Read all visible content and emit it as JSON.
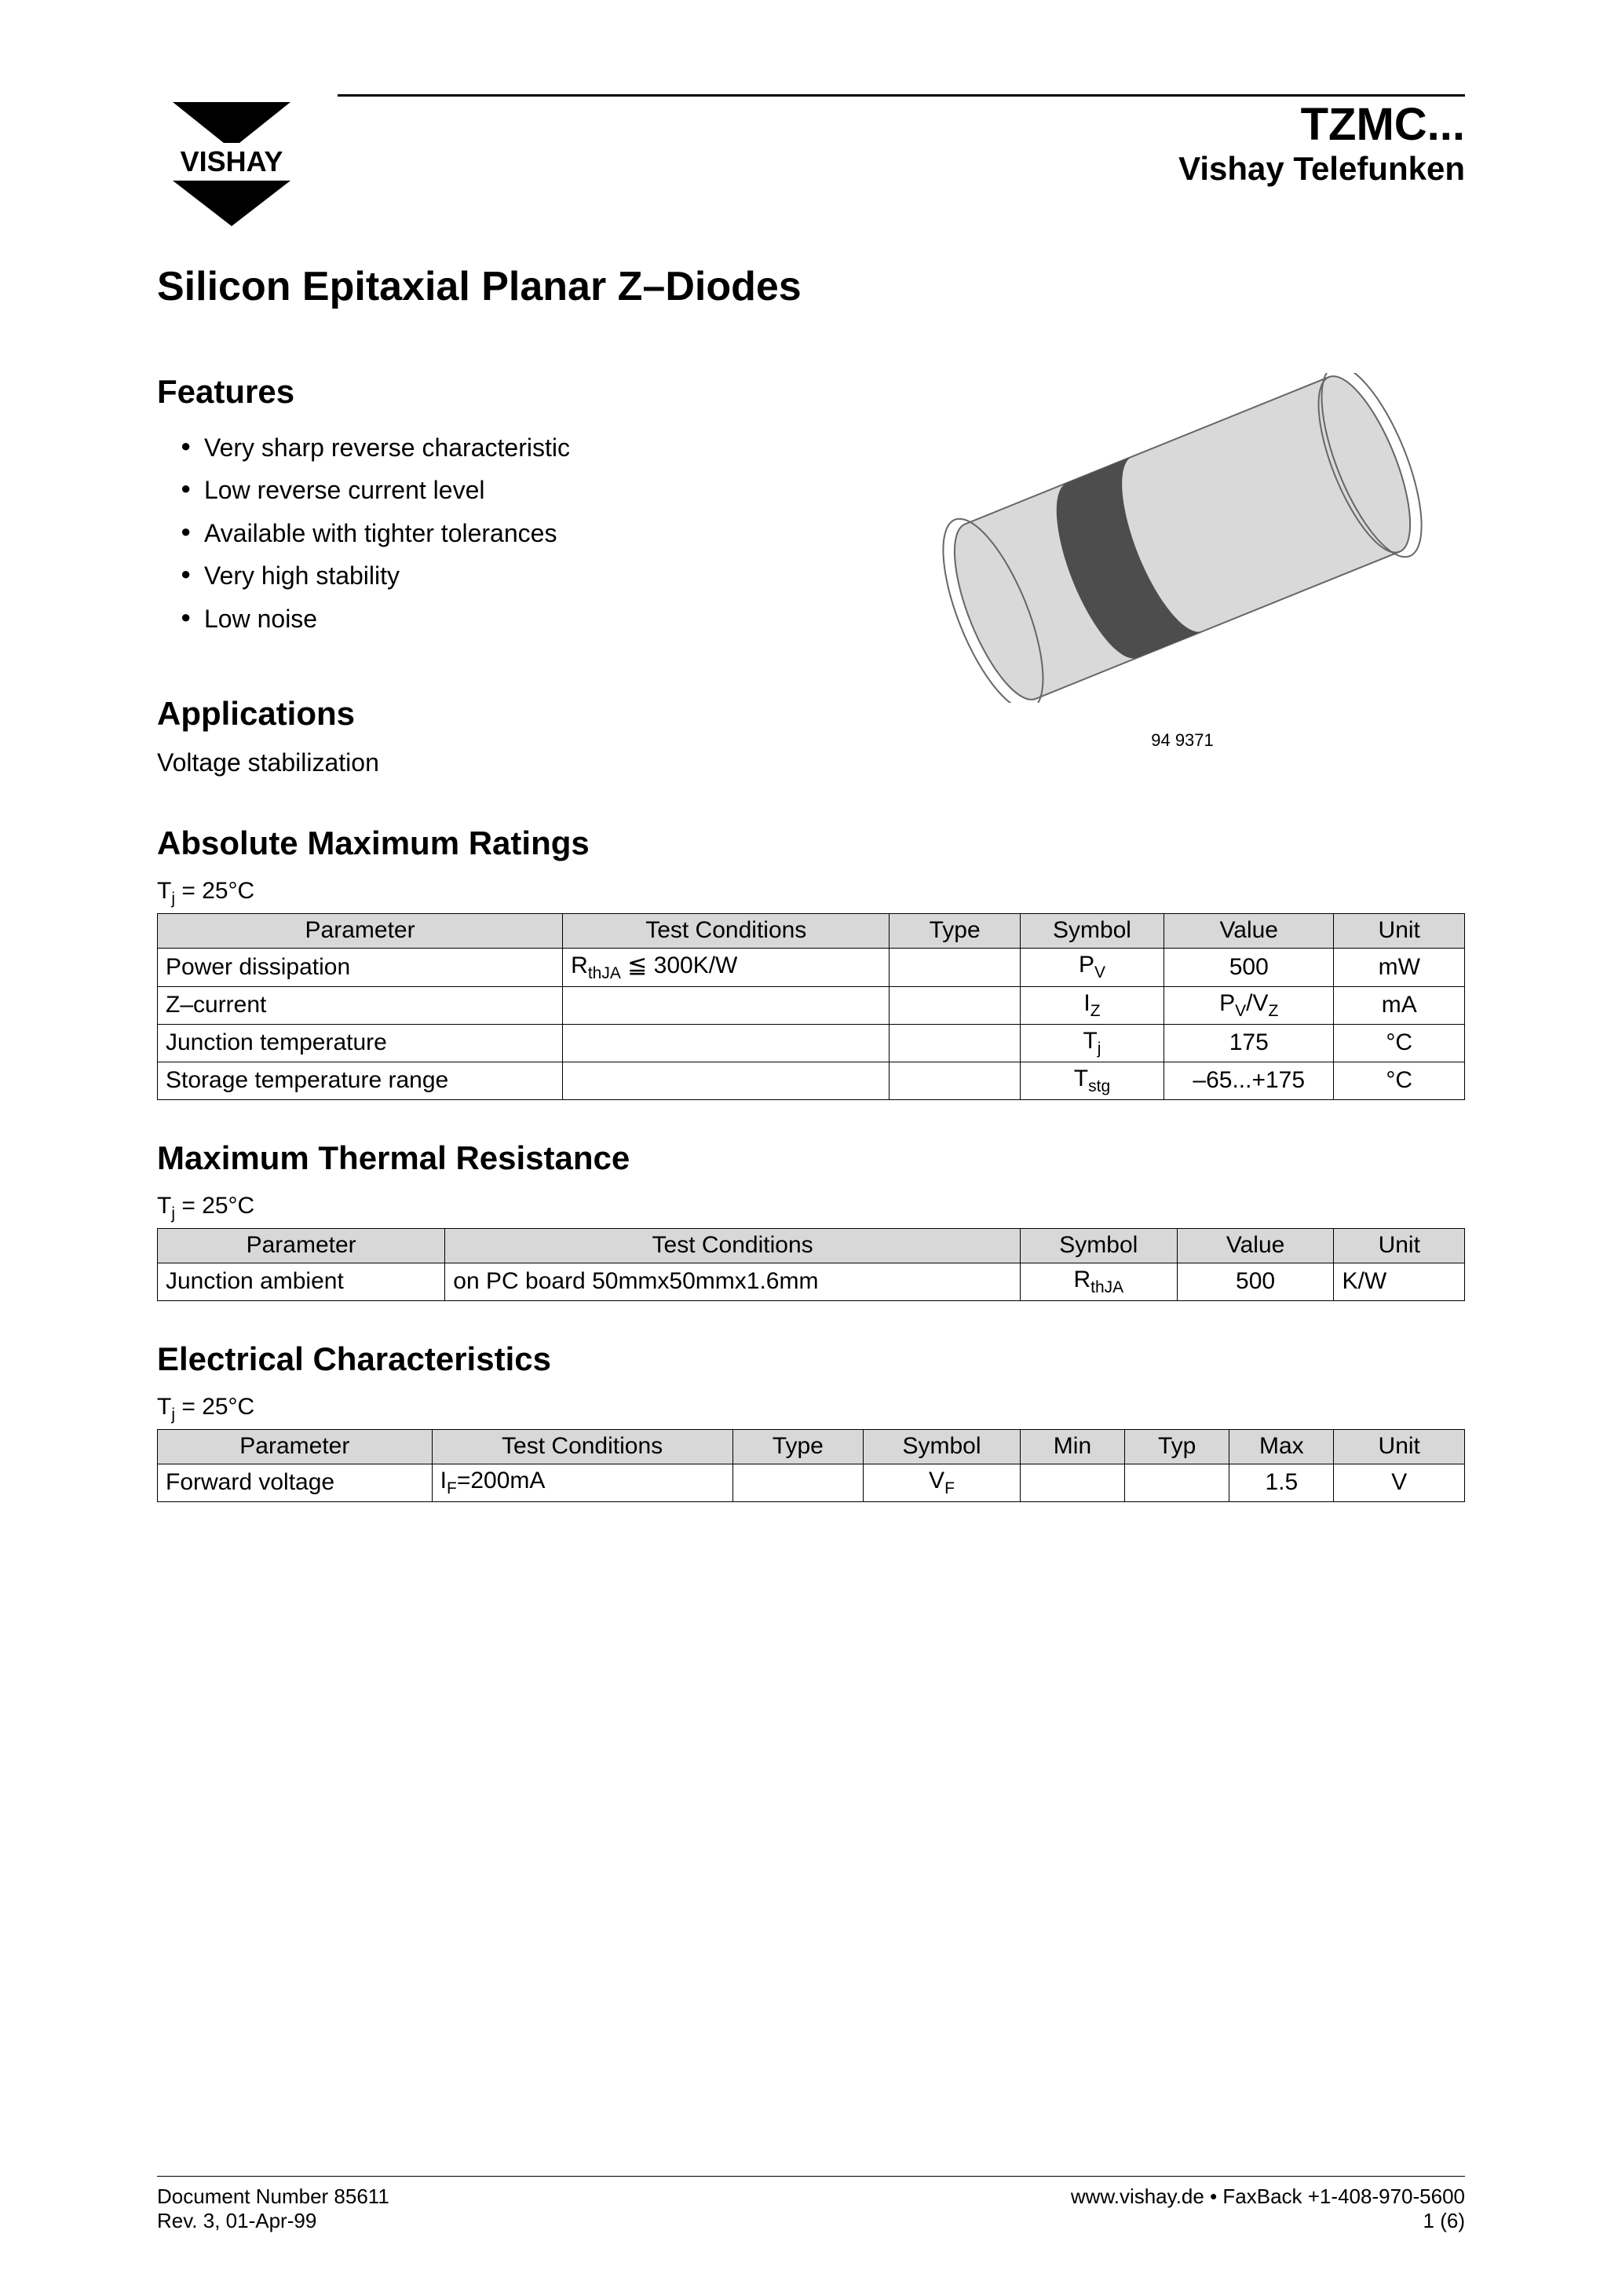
{
  "header": {
    "logo_text": "VISHAY",
    "product_code": "TZMC...",
    "brand_sub": "Vishay Telefunken"
  },
  "title": "Silicon Epitaxial Planar Z–Diodes",
  "features": {
    "heading": "Features",
    "items": [
      "Very sharp reverse characteristic",
      "Low reverse current level",
      "Available with tighter tolerances",
      "Very high stability",
      "Low noise"
    ]
  },
  "applications": {
    "heading": "Applications",
    "text": "Voltage stabilization"
  },
  "component_diagram": {
    "caption": "94 9371",
    "body_fill": "#d9d9d9",
    "band_fill": "#4d4d4d",
    "stroke": "#666666"
  },
  "abs_max": {
    "heading": "Absolute Maximum Ratings",
    "condition_html": "T<span class=\"sub\">j</span> = 25°C",
    "columns": [
      "Parameter",
      "Test Conditions",
      "Type",
      "Symbol",
      "Value",
      "Unit"
    ],
    "col_widths": [
      "31%",
      "25%",
      "10%",
      "11%",
      "13%",
      "10%"
    ],
    "rows": [
      {
        "parameter": "Power dissipation",
        "test": "R<span class=\"sub\">thJA</span> ≦ 300K/W",
        "type": "",
        "symbol": "P<span class=\"sub\">V</span>",
        "value": "500",
        "unit": "mW"
      },
      {
        "parameter": "Z–current",
        "test": "",
        "type": "",
        "symbol": "I<span class=\"sub\">Z</span>",
        "value": "P<span class=\"sub\">V</span>/V<span class=\"sub\">Z</span>",
        "unit": "mA"
      },
      {
        "parameter": "Junction temperature",
        "test": "",
        "type": "",
        "symbol": "T<span class=\"sub\">j</span>",
        "value": "175",
        "unit": "°C"
      },
      {
        "parameter": "Storage temperature range",
        "test": "",
        "type": "",
        "symbol": "T<span class=\"sub\">stg</span>",
        "value": "–65...+175",
        "unit": "°C"
      }
    ]
  },
  "thermal": {
    "heading": "Maximum Thermal Resistance",
    "condition_html": "T<span class=\"sub\">j</span> = 25°C",
    "columns": [
      "Parameter",
      "Test Conditions",
      "Symbol",
      "Value",
      "Unit"
    ],
    "col_widths": [
      "22%",
      "44%",
      "12%",
      "12%",
      "10%"
    ],
    "rows": [
      {
        "parameter": "Junction ambient",
        "test": "on PC board 50mmx50mmx1.6mm",
        "symbol": "R<span class=\"sub\">thJA</span>",
        "value": "500",
        "unit": "K/W"
      }
    ]
  },
  "electrical": {
    "heading": "Electrical Characteristics",
    "condition_html": "T<span class=\"sub\">j</span> = 25°C",
    "columns": [
      "Parameter",
      "Test Conditions",
      "Type",
      "Symbol",
      "Min",
      "Typ",
      "Max",
      "Unit"
    ],
    "col_widths": [
      "21%",
      "23%",
      "10%",
      "12%",
      "8%",
      "8%",
      "8%",
      "10%"
    ],
    "rows": [
      {
        "parameter": "Forward voltage",
        "test": "I<span class=\"sub\">F</span>=200mA",
        "type": "",
        "symbol": "V<span class=\"sub\">F</span>",
        "min": "",
        "typ": "",
        "max": "1.5",
        "unit": "V"
      }
    ]
  },
  "footer": {
    "doc_number": "Document Number 85611",
    "rev": "Rev. 3, 01-Apr-99",
    "url_fax": "www.vishay.de • FaxBack +1-408-970-5600",
    "page": "1 (6)"
  }
}
